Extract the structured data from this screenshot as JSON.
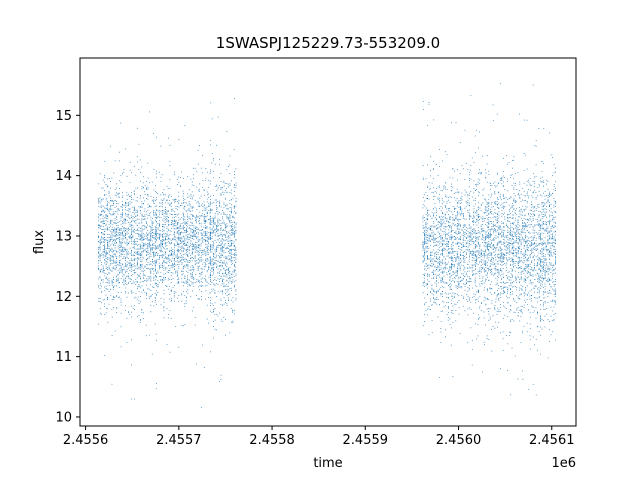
{
  "chart_data": {
    "type": "scatter",
    "title": "1SWASPJ125229.73-553209.0",
    "xlabel": "time",
    "ylabel": "flux",
    "x_offset_label": "1e6",
    "xlim": [
      2455594,
      2456126
    ],
    "ylim": [
      9.85,
      15.95
    ],
    "xticks": [
      2455600,
      2455700,
      2455800,
      2455900,
      2456000,
      2456100
    ],
    "xtick_labels": [
      "2.4556",
      "2.4557",
      "2.4558",
      "2.4559",
      "2.4560",
      "2.4561"
    ],
    "yticks": [
      10,
      11,
      12,
      13,
      14,
      15
    ],
    "ytick_labels": [
      "10",
      "11",
      "12",
      "13",
      "14",
      "15"
    ],
    "grid": false,
    "marker_color": "#1f77b4",
    "series": [
      {
        "values_summary": "dense observation segments",
        "segments": [
          {
            "x_range": [
              2455614,
              2455676
            ],
            "median": 12.85,
            "core_spread": 0.5,
            "min": 10.1,
            "max": 15.1
          },
          {
            "x_range": [
              2455676,
              2455734
            ],
            "median": 12.9,
            "core_spread": 0.45,
            "min": 10.1,
            "max": 14.9
          },
          {
            "x_range": [
              2455734,
              2455762
            ],
            "median": 12.85,
            "core_spread": 0.55,
            "min": 10.3,
            "max": 15.4
          },
          {
            "x_range": [
              2455962,
              2456040
            ],
            "median": 12.8,
            "core_spread": 0.55,
            "min": 10.6,
            "max": 15.4
          },
          {
            "x_range": [
              2456040,
              2456105
            ],
            "median": 12.8,
            "core_spread": 0.6,
            "min": 10.1,
            "max": 15.7
          }
        ],
        "nightly_spacing_days": 1.6
      }
    ]
  }
}
